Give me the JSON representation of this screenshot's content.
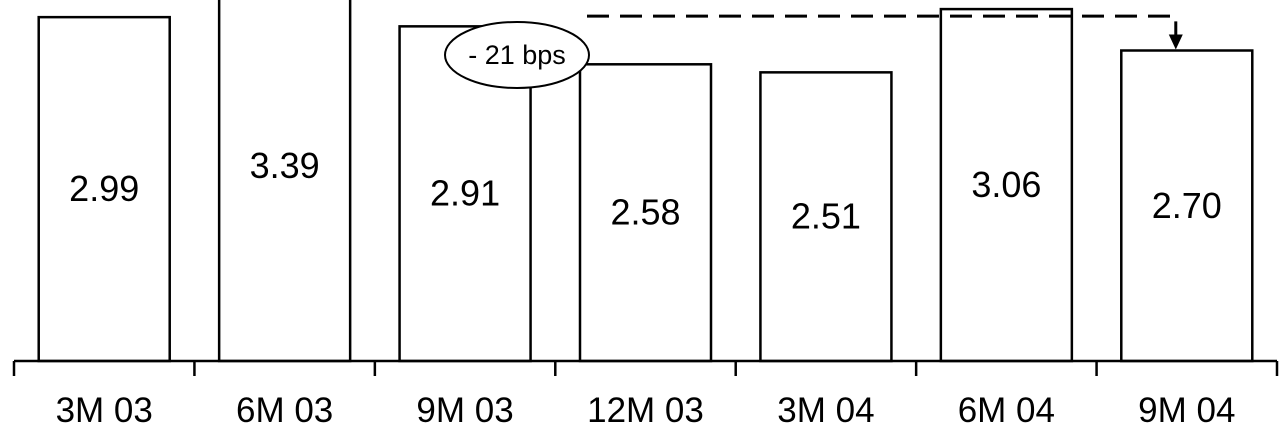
{
  "chart_data": {
    "type": "bar",
    "categories": [
      "3M 03",
      "6M 03",
      "9M 03",
      "12M 03",
      "3M 04",
      "6M 04",
      "9M 04"
    ],
    "values": [
      2.99,
      3.39,
      2.91,
      2.58,
      2.51,
      3.06,
      2.7
    ],
    "data_labels": [
      "2.99",
      "3.39",
      "2.91",
      "2.58",
      "2.51",
      "3.06",
      "2.70"
    ],
    "ylim": [
      0,
      3.5
    ],
    "grid": false,
    "annotation": {
      "text": "- 21 bps",
      "from_category": "6M 04",
      "to_category": "9M 04"
    }
  }
}
